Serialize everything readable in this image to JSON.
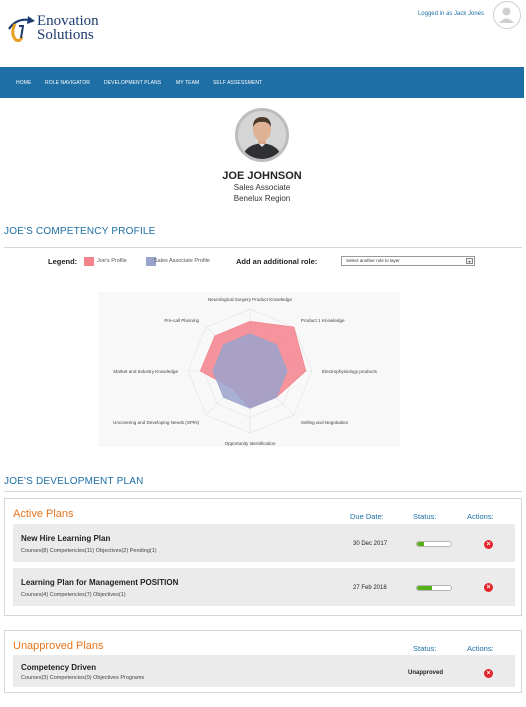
{
  "header": {
    "logo_line1": "Enovation",
    "logo_line2": "Solutions",
    "logged_in_text": "Logged in as Jack Jones"
  },
  "nav": {
    "items": [
      "HOME",
      "ROLE NAVIGATOR",
      "DEVELOPMENT PLANS",
      "MY TEAM",
      "SELF ASSESSMENT"
    ]
  },
  "profile": {
    "name": "JOE JOHNSON",
    "title": "Sales Associate",
    "region": "Benelux Region"
  },
  "competency": {
    "section_title": "JOE'S COMPETENCY PROFILE",
    "legend_label": "Legend:",
    "legend_items": [
      {
        "label": "Joe's Profile",
        "color": "#f4838c"
      },
      {
        "label": "Sales Associate Profile",
        "color": "#9aa3cc"
      }
    ],
    "add_role_label": "Add an additional role:",
    "role_select_value": "Select another role to layer"
  },
  "chart_data": {
    "type": "radar",
    "axes": [
      "Neurological Surgery Product Knowledge",
      "Product 1 Knowledge",
      "Electrophysiology products",
      "Selling and Negotiation",
      "Opportunity Identification",
      "Uncovering and Developing Needs (SPIN)",
      "Market and Industry Knowledge",
      "Pre-call Planning"
    ],
    "max": 5,
    "series": [
      {
        "name": "Joe's Profile",
        "values": [
          4,
          5,
          4.5,
          3,
          3,
          2,
          4,
          4
        ],
        "color": "#f4838c"
      },
      {
        "name": "Sales Associate Profile",
        "values": [
          3,
          3,
          3,
          3,
          3,
          3,
          3,
          3
        ],
        "color": "#9aa3cc"
      }
    ]
  },
  "development": {
    "section_title": "JOE'S DEVELOPMENT PLAN",
    "active": {
      "title": "Active Plans",
      "col_due": "Due Date:",
      "col_status": "Status:",
      "col_actions": "Actions:",
      "plans": [
        {
          "name": "New Hire Learning Plan",
          "detail": "Courses(8) Competencies(11) Objectives(2) Pending(1)",
          "due": "30 Dec 2017",
          "progress": 0.2
        },
        {
          "name": "Learning Plan for Management POSITION",
          "detail": "Courses(4) Competencies(7) Objectives(1)",
          "due": "27 Feb 2018",
          "progress": 0.45
        }
      ]
    },
    "unapproved": {
      "title": "Unapproved Plans",
      "col_status": "Status:",
      "col_actions": "Actions:",
      "plans": [
        {
          "name": "Competency Driven",
          "detail": "Courses(3) Competencies(9) Objectives Programs",
          "status": "Unapproved"
        }
      ]
    }
  }
}
